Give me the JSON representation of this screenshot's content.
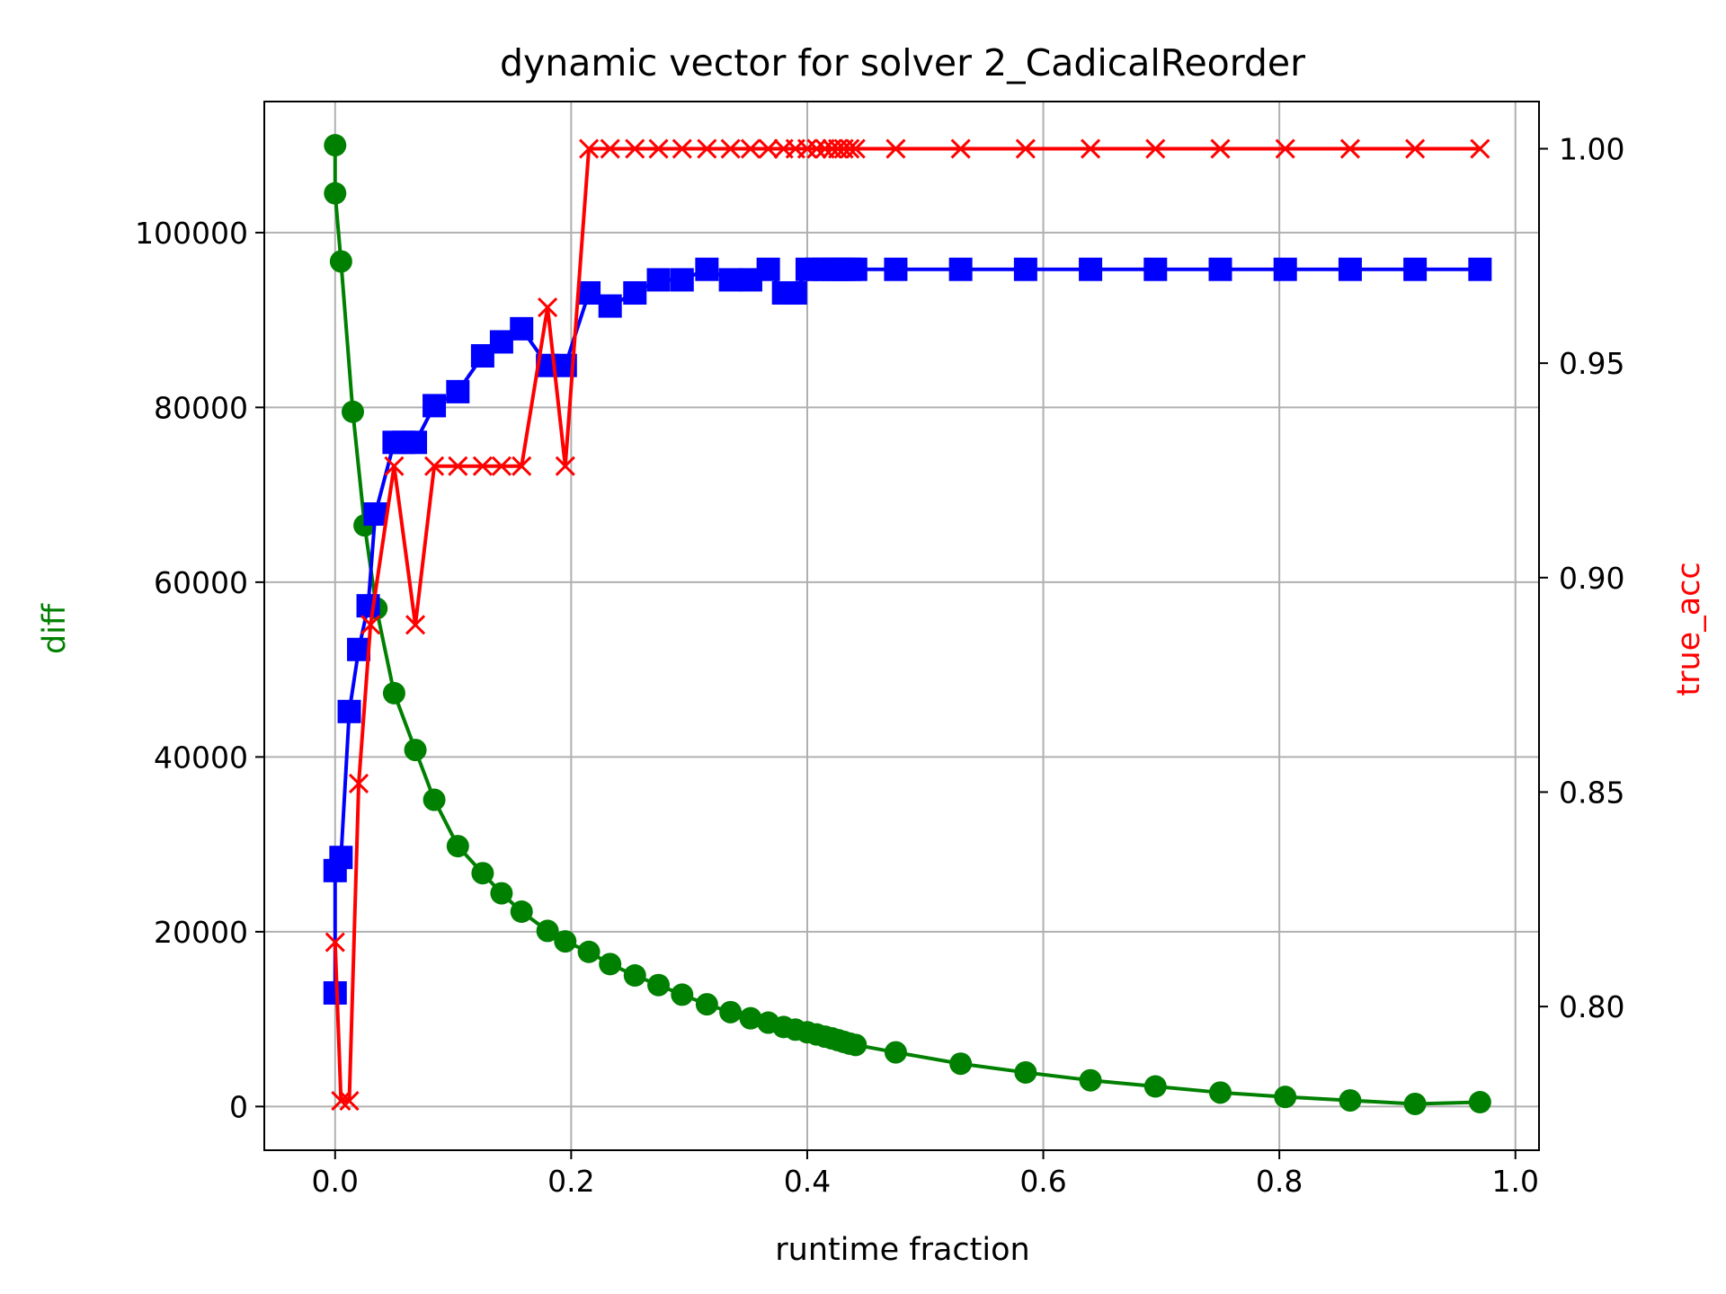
{
  "chart_data": {
    "type": "line",
    "title": "dynamic vector for solver 2_CadicalReorder",
    "xlabel": "runtime fraction",
    "ylabel": "diff",
    "ylabel_right": "true_acc",
    "xlim": [
      -0.06,
      1.02
    ],
    "ylim": [
      -5000,
      115000
    ],
    "ylim_right": [
      0.7665,
      1.011
    ],
    "xticks": [
      "0.0",
      "0.2",
      "0.4",
      "0.6",
      "0.8",
      "1.0"
    ],
    "yticks": [
      "0",
      "20000",
      "40000",
      "60000",
      "80000",
      "100000"
    ],
    "yticks_right": [
      "0.80",
      "0.85",
      "0.90",
      "0.95",
      "1.00"
    ],
    "grid": true,
    "colors": {
      "diff": "#008000",
      "blue_series": "#0000ff",
      "true_acc": "#ff0000",
      "grid": "#b0b0b0"
    },
    "series": [
      {
        "axis": "left",
        "marker": "circle",
        "color": "#008000",
        "x": [
          0.0,
          0.0,
          0.005,
          0.015,
          0.025,
          0.035,
          0.05,
          0.068,
          0.084,
          0.104,
          0.125,
          0.141,
          0.158,
          0.18,
          0.195,
          0.215,
          0.233,
          0.254,
          0.274,
          0.294,
          0.315,
          0.335,
          0.352,
          0.367,
          0.38,
          0.39,
          0.4,
          0.408,
          0.415,
          0.421,
          0.426,
          0.431,
          0.436,
          0.441,
          0.475,
          0.53,
          0.585,
          0.64,
          0.695,
          0.75,
          0.805,
          0.86,
          0.915,
          0.97
        ],
        "y": [
          110000,
          104500,
          96700,
          79500,
          66500,
          57000,
          47300,
          40800,
          35100,
          29800,
          26700,
          24400,
          22300,
          20100,
          18900,
          17700,
          16300,
          15000,
          13900,
          12800,
          11700,
          10800,
          10100,
          9600,
          9100,
          8800,
          8500,
          8250,
          8000,
          7800,
          7600,
          7400,
          7200,
          7050,
          6200,
          4900,
          3900,
          3000,
          2300,
          1600,
          1100,
          700,
          300,
          500
        ]
      },
      {
        "axis": "left",
        "marker": "square",
        "color": "#0000ff",
        "x": [
          0.0,
          0.0,
          0.005,
          0.012,
          0.02,
          0.028,
          0.034,
          0.05,
          0.058,
          0.068,
          0.084,
          0.104,
          0.125,
          0.141,
          0.158,
          0.18,
          0.195,
          0.215,
          0.233,
          0.254,
          0.274,
          0.294,
          0.315,
          0.335,
          0.352,
          0.367,
          0.38,
          0.39,
          0.4,
          0.408,
          0.415,
          0.421,
          0.426,
          0.431,
          0.436,
          0.441,
          0.475,
          0.53,
          0.585,
          0.64,
          0.695,
          0.75,
          0.805,
          0.86,
          0.915,
          0.97
        ],
        "y": [
          13000,
          27000,
          28500,
          45200,
          52300,
          57300,
          67800,
          76000,
          76000,
          76000,
          80200,
          81800,
          85900,
          87500,
          89000,
          84800,
          84800,
          93100,
          91600,
          93100,
          94600,
          94600,
          95800,
          94600,
          94600,
          95800,
          93100,
          93100,
          95800,
          95800,
          95800,
          95800,
          95800,
          95800,
          95800,
          95800,
          95800,
          95800,
          95800,
          95800,
          95800,
          95800,
          95800,
          95800,
          95800,
          95800
        ]
      },
      {
        "axis": "right",
        "marker": "x",
        "color": "#ff0000",
        "name": "true_acc",
        "x": [
          0.0,
          0.005,
          0.012,
          0.02,
          0.03,
          0.05,
          0.068,
          0.084,
          0.104,
          0.125,
          0.141,
          0.158,
          0.18,
          0.195,
          0.215,
          0.233,
          0.254,
          0.274,
          0.294,
          0.315,
          0.335,
          0.352,
          0.367,
          0.38,
          0.39,
          0.4,
          0.408,
          0.415,
          0.421,
          0.426,
          0.431,
          0.436,
          0.441,
          0.475,
          0.53,
          0.585,
          0.64,
          0.695,
          0.75,
          0.805,
          0.86,
          0.915,
          0.97
        ],
        "y": [
          0.815,
          0.778,
          0.778,
          0.852,
          0.889,
          0.926,
          0.889,
          0.926,
          0.926,
          0.926,
          0.926,
          0.926,
          0.963,
          0.926,
          1.0,
          1.0,
          1.0,
          1.0,
          1.0,
          1.0,
          1.0,
          1.0,
          1.0,
          1.0,
          1.0,
          1.0,
          1.0,
          1.0,
          1.0,
          1.0,
          1.0,
          1.0,
          1.0,
          1.0,
          1.0,
          1.0,
          1.0,
          1.0,
          1.0,
          1.0,
          1.0,
          1.0,
          1.0
        ]
      }
    ]
  }
}
